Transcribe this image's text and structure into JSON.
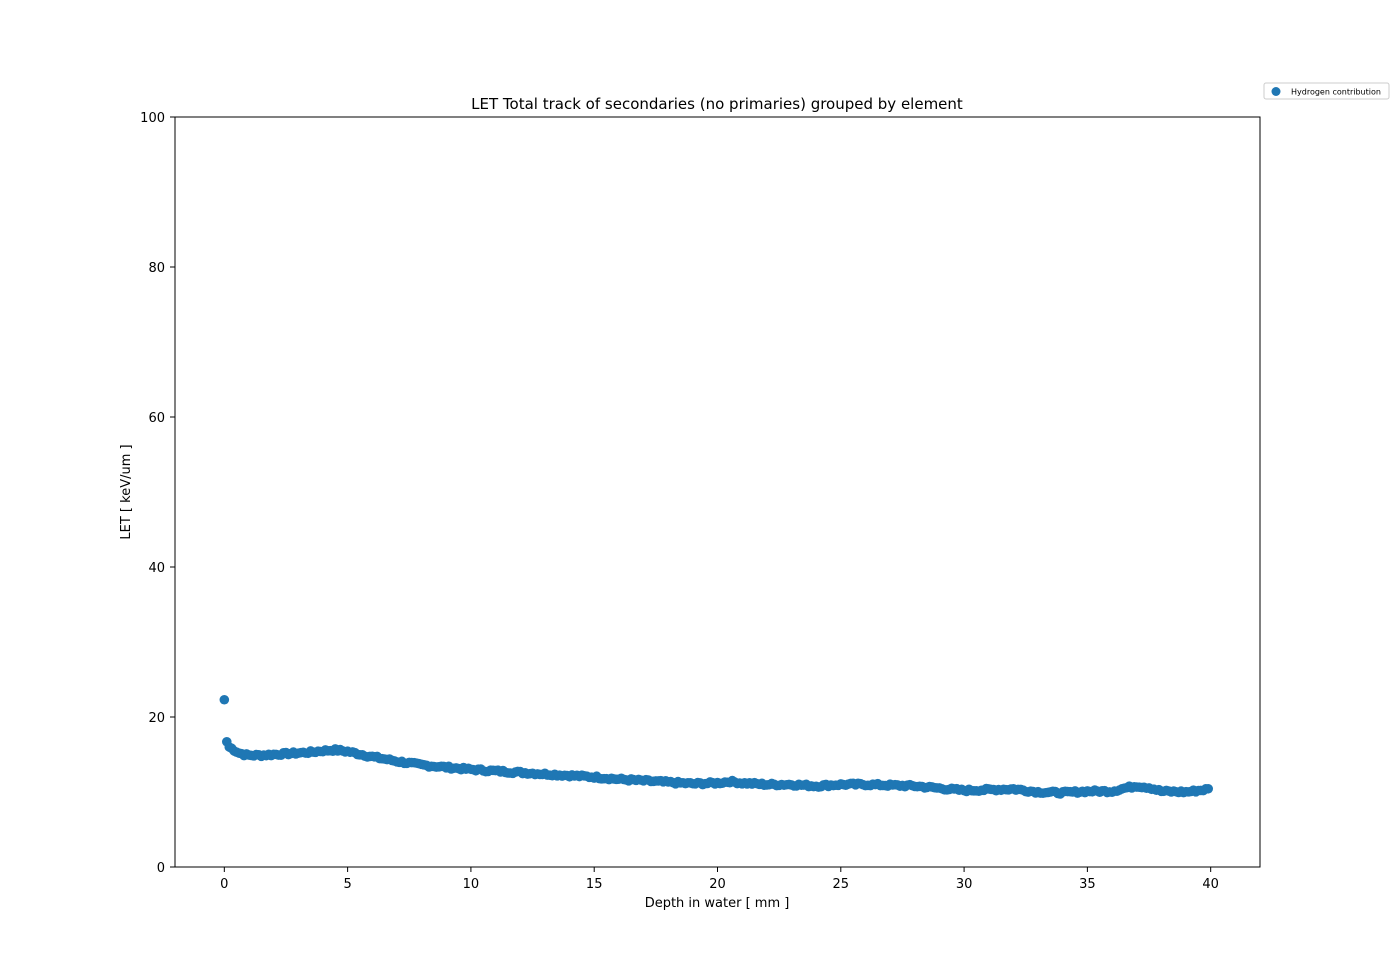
{
  "chart_data": {
    "type": "scatter",
    "title": "LET Total track of secondaries (no primaries) grouped by element",
    "xlabel": "Depth in water [ mm ]",
    "ylabel": "LET [ keV/um ]",
    "xlim": [
      -2,
      42
    ],
    "ylim": [
      0,
      100
    ],
    "xticks": [
      0,
      5,
      10,
      15,
      20,
      25,
      30,
      35,
      40
    ],
    "xtick_labels": [
      "0",
      "5",
      "10",
      "15",
      "20",
      "25",
      "30",
      "35",
      "40"
    ],
    "yticks": [
      0,
      20,
      40,
      60,
      80,
      100
    ],
    "ytick_labels": [
      "0",
      "20",
      "40",
      "60",
      "80",
      "100"
    ],
    "grid": false,
    "legend_position": "outside-top-right",
    "series": [
      {
        "name": "Hydrogen contribution",
        "color": "#1f77b4",
        "anchors": {
          "x": [
            0,
            0.1,
            0.2,
            0.4,
            0.6,
            0.8,
            1.0,
            1.5,
            2.0,
            2.5,
            3.0,
            3.5,
            4.0,
            4.5,
            5.0,
            6.0,
            7.0,
            8.0,
            9.0,
            10.0,
            11.0,
            12.0,
            13.0,
            14.0,
            15.0,
            16.0,
            17.0,
            18.0,
            19.0,
            20.0,
            20.5,
            21.0,
            22.0,
            23.0,
            24.0,
            25.0,
            26.0,
            27.0,
            28.0,
            29.0,
            30.0,
            31.0,
            32.0,
            33.0,
            34.0,
            35.0,
            36.0,
            36.5,
            37.0,
            37.5,
            38.0,
            39.0,
            40.0
          ],
          "y": [
            22.3,
            16.7,
            16.0,
            15.6,
            15.2,
            15.0,
            14.9,
            14.9,
            15.0,
            15.1,
            15.2,
            15.3,
            15.5,
            15.6,
            15.4,
            14.7,
            14.1,
            13.6,
            13.3,
            13.0,
            12.8,
            12.6,
            12.4,
            12.2,
            12.0,
            11.7,
            11.5,
            11.3,
            11.1,
            11.2,
            11.4,
            11.2,
            11.0,
            11.0,
            10.8,
            11.0,
            11.0,
            10.9,
            10.8,
            10.5,
            10.2,
            10.3,
            10.4,
            10.0,
            9.9,
            10.1,
            10.1,
            10.5,
            10.8,
            10.6,
            10.1,
            10.0,
            10.4
          ]
        },
        "point_spacing": 0.1,
        "x_range": [
          0,
          39.9
        ]
      }
    ]
  }
}
